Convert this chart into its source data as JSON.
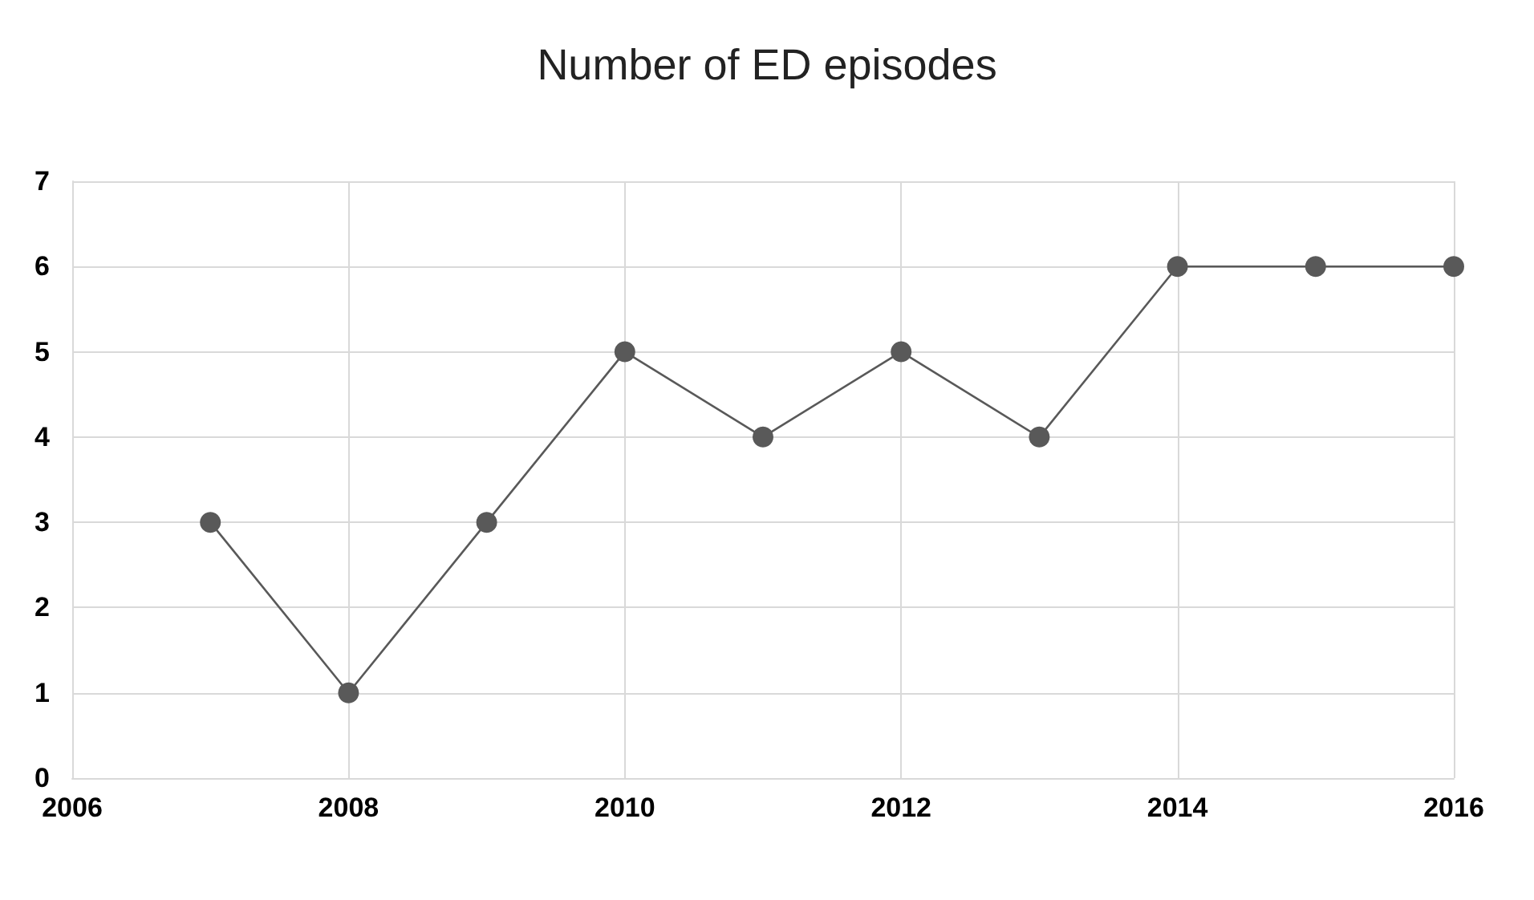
{
  "chart_data": {
    "type": "line",
    "title": "Number of ED episodes",
    "x": [
      2007,
      2008,
      2009,
      2010,
      2011,
      2012,
      2013,
      2014,
      2015,
      2016
    ],
    "series": [
      {
        "color": "#595959",
        "values": [
          3,
          1,
          3,
          5,
          4,
          5,
          4,
          6,
          6,
          6
        ]
      }
    ],
    "xlim": [
      2006,
      2016
    ],
    "xticks": [
      2006,
      2008,
      2010,
      2012,
      2014,
      2016
    ],
    "ylim": [
      0,
      7
    ],
    "yticks": [
      0,
      1,
      2,
      3,
      4,
      5,
      6,
      7
    ],
    "grid": true,
    "marker": "circle",
    "line_style": "solid"
  }
}
